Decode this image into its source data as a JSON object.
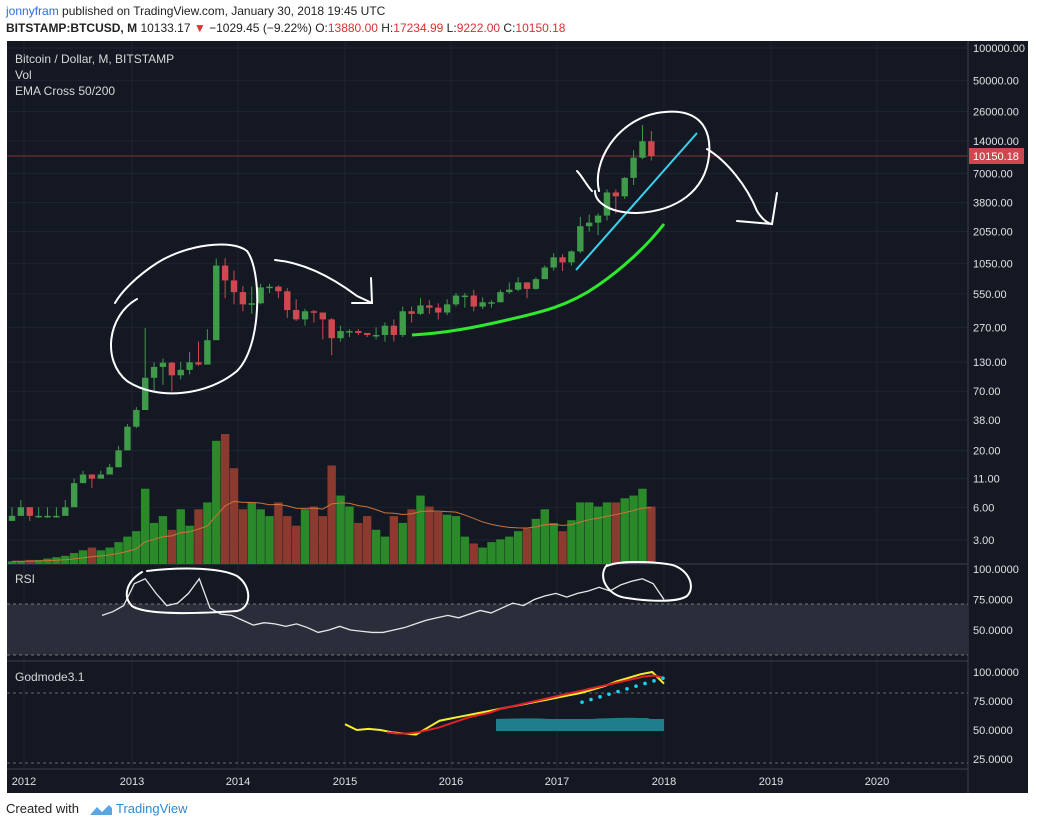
{
  "header": {
    "user": "jonnyfram",
    "published": "published on TradingView.com, January 30, 2018 19:45 UTC",
    "symbol": "BITSTAMP:BTCUSD, M",
    "last": "10133.17",
    "change": "−1029.45 (−9.22%)",
    "o_label": "O:",
    "o_val": "13880.00",
    "h_label": "H:",
    "h_val": "17234.99",
    "l_label": "L:",
    "l_val": "9222.00",
    "c_label": "C:",
    "c_val": "10150.18"
  },
  "legend": {
    "title": "Bitcoin / Dollar, M, BITSTAMP",
    "vol": "Vol",
    "ema": "EMA Cross 50/200",
    "rsi": "RSI",
    "godmode": "Godmode3.1"
  },
  "price_badge": "10150.18",
  "footer": {
    "created": "Created with",
    "brand": "TradingView"
  },
  "colors": {
    "up": "#3f9b4a",
    "down": "#d0484f",
    "bg": "#141823",
    "ema": "#2ee82e",
    "trend": "#3ad1ee",
    "yellow": "#f5f02a",
    "red": "#e0202a",
    "cyan": "#19d4f0"
  },
  "chart_data": {
    "type": "candlestick",
    "title": "Bitcoin / Dollar, M, BITSTAMP",
    "scale": "log",
    "price_axis_ticks": [
      "100000.00",
      "50000.00",
      "26000.00",
      "14000.00",
      "7000.00",
      "3800.00",
      "2050.00",
      "1050.00",
      "550.00",
      "270.00",
      "130.00",
      "70.00",
      "38.00",
      "20.00",
      "11.00",
      "6.00",
      "3.00"
    ],
    "x_axis_ticks": [
      "2012",
      "2013",
      "2014",
      "2015",
      "2016",
      "2017",
      "2018",
      "2019",
      "2020"
    ],
    "rsi_ticks": [
      "100.0000",
      "75.0000",
      "50.0000"
    ],
    "godmode_ticks": [
      "100.0000",
      "75.0000",
      "50.0000",
      "25.0000"
    ],
    "last_price": 10150.18,
    "candles_close": [
      5,
      6,
      5,
      5,
      5,
      5,
      6,
      10,
      12,
      11,
      12,
      14,
      20,
      33,
      47,
      93,
      117,
      128,
      98,
      110,
      129,
      123,
      206,
      1000,
      730,
      570,
      440,
      450,
      630,
      640,
      580,
      390,
      320,
      380,
      370,
      320,
      215,
      250,
      250,
      240,
      230,
      230,
      280,
      230,
      380,
      360,
      430,
      410,
      370,
      440,
      530,
      530,
      420,
      460,
      460,
      570,
      600,
      700,
      610,
      750,
      960,
      1190,
      1070,
      1350,
      2300,
      2480,
      2880,
      4700,
      4330,
      6400,
      9800,
      13900,
      10150
    ],
    "candles_high": [
      6,
      7,
      6,
      6,
      6,
      6,
      7,
      11,
      13,
      12,
      13,
      15,
      22,
      35,
      50,
      266,
      129,
      140,
      130,
      130,
      160,
      200,
      260,
      1160,
      1170,
      900,
      650,
      640,
      680,
      680,
      660,
      620,
      490,
      400,
      390,
      350,
      330,
      280,
      260,
      260,
      240,
      270,
      300,
      320,
      420,
      420,
      500,
      480,
      450,
      490,
      560,
      560,
      600,
      510,
      480,
      600,
      700,
      780,
      700,
      780,
      1000,
      1300,
      1270,
      1380,
      2800,
      2950,
      3020,
      5000,
      5000,
      6500,
      11500,
      19600,
      17234
    ],
    "candles_low": [
      4.5,
      5,
      4.5,
      4.8,
      4.8,
      4.8,
      5.5,
      7,
      10,
      9,
      11,
      12,
      14,
      20,
      32,
      47,
      70,
      80,
      70,
      90,
      100,
      120,
      190,
      390,
      500,
      440,
      380,
      360,
      440,
      560,
      500,
      330,
      310,
      280,
      300,
      210,
      150,
      200,
      220,
      230,
      220,
      210,
      200,
      200,
      220,
      300,
      350,
      360,
      320,
      350,
      420,
      410,
      380,
      400,
      410,
      460,
      550,
      580,
      500,
      600,
      750,
      900,
      890,
      1000,
      1300,
      2050,
      1900,
      2600,
      3000,
      4100,
      5500,
      9500,
      9222
    ],
    "volume_ema_note": "EMA Cross 50/200 green line ~250 (2015-09) to ~2400 (2018-01)",
    "rsi_approx": [
      62,
      65,
      70,
      88,
      92,
      80,
      70,
      72,
      80,
      92,
      68,
      63,
      62,
      58,
      54,
      56,
      55,
      53,
      55,
      52,
      48,
      50,
      53,
      50,
      49,
      48,
      48,
      50,
      52,
      55,
      58,
      60,
      62,
      60,
      63,
      66,
      64,
      68,
      72,
      70,
      75,
      78,
      80,
      77,
      80,
      82,
      85,
      82,
      87,
      90,
      92,
      88,
      75
    ],
    "godmode_yellow_approx": [
      55,
      50,
      51,
      50,
      48,
      47,
      46,
      52,
      58,
      60,
      62,
      64,
      66,
      68,
      70,
      72,
      74,
      76,
      78,
      80,
      82,
      85,
      88,
      92,
      95,
      98,
      100,
      90
    ],
    "godmode_red_approx": [
      48,
      47,
      47,
      48,
      50,
      52,
      55,
      58,
      61,
      63,
      65,
      68,
      70,
      72,
      74,
      76,
      78,
      80,
      82,
      84,
      86,
      88,
      90,
      92,
      94,
      96,
      97,
      95
    ]
  },
  "annotations": {
    "note": "hand-drawn circles and arrows (drawn as shapes)"
  }
}
